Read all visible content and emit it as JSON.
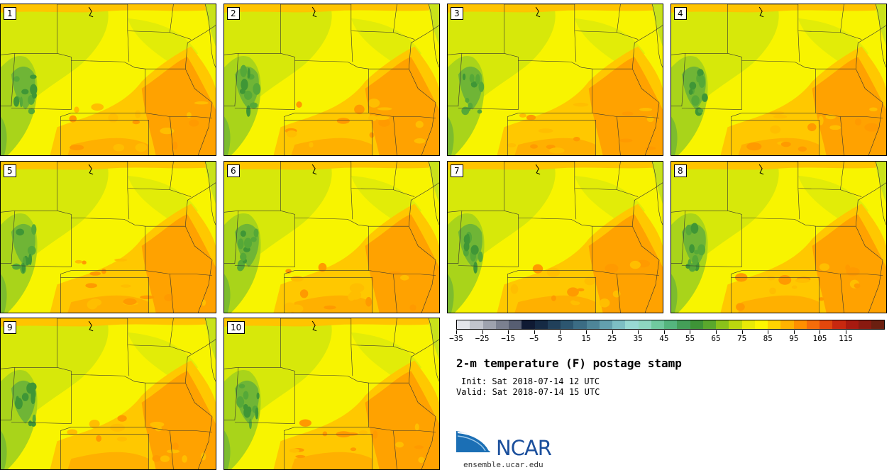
{
  "product": {
    "title": "2-m temperature (F) postage stamp",
    "init_time": "Init: Sat 2018-07-14 12 UTC",
    "valid_time": "Valid: Sat 2018-07-14 15 UTC"
  },
  "members": [
    "1",
    "2",
    "3",
    "4",
    "5",
    "6",
    "7",
    "8",
    "9",
    "10"
  ],
  "colorbar": {
    "tick_labels": [
      "−35",
      "−25",
      "−15",
      "−5",
      "5",
      "15",
      "25",
      "35",
      "45",
      "55",
      "65",
      "75",
      "85",
      "95",
      "105",
      "115"
    ],
    "min": -35,
    "max": 120,
    "step": 5,
    "colors": [
      "#e3e5ea",
      "#c1c4cc",
      "#9ea2ae",
      "#7b8090",
      "#575e72",
      "#0f1a33",
      "#152a44",
      "#21405a",
      "#2c5670",
      "#3b6c84",
      "#4e8598",
      "#63a0ae",
      "#7dbec4",
      "#98d9d3",
      "#8ed6c0",
      "#70c99f",
      "#55b57e",
      "#449e58",
      "#3e9437",
      "#5aa82c",
      "#8bc21a",
      "#bbd70e",
      "#e8ea07",
      "#fff600",
      "#ffd400",
      "#ffb200",
      "#ff8f00",
      "#f46c0a",
      "#e2470d",
      "#c8280f",
      "#a81a10",
      "#8a1a10",
      "#6b1f10"
    ]
  },
  "branding": {
    "logo_text": "NCAR",
    "website": "ensemble.ucar.edu"
  }
}
